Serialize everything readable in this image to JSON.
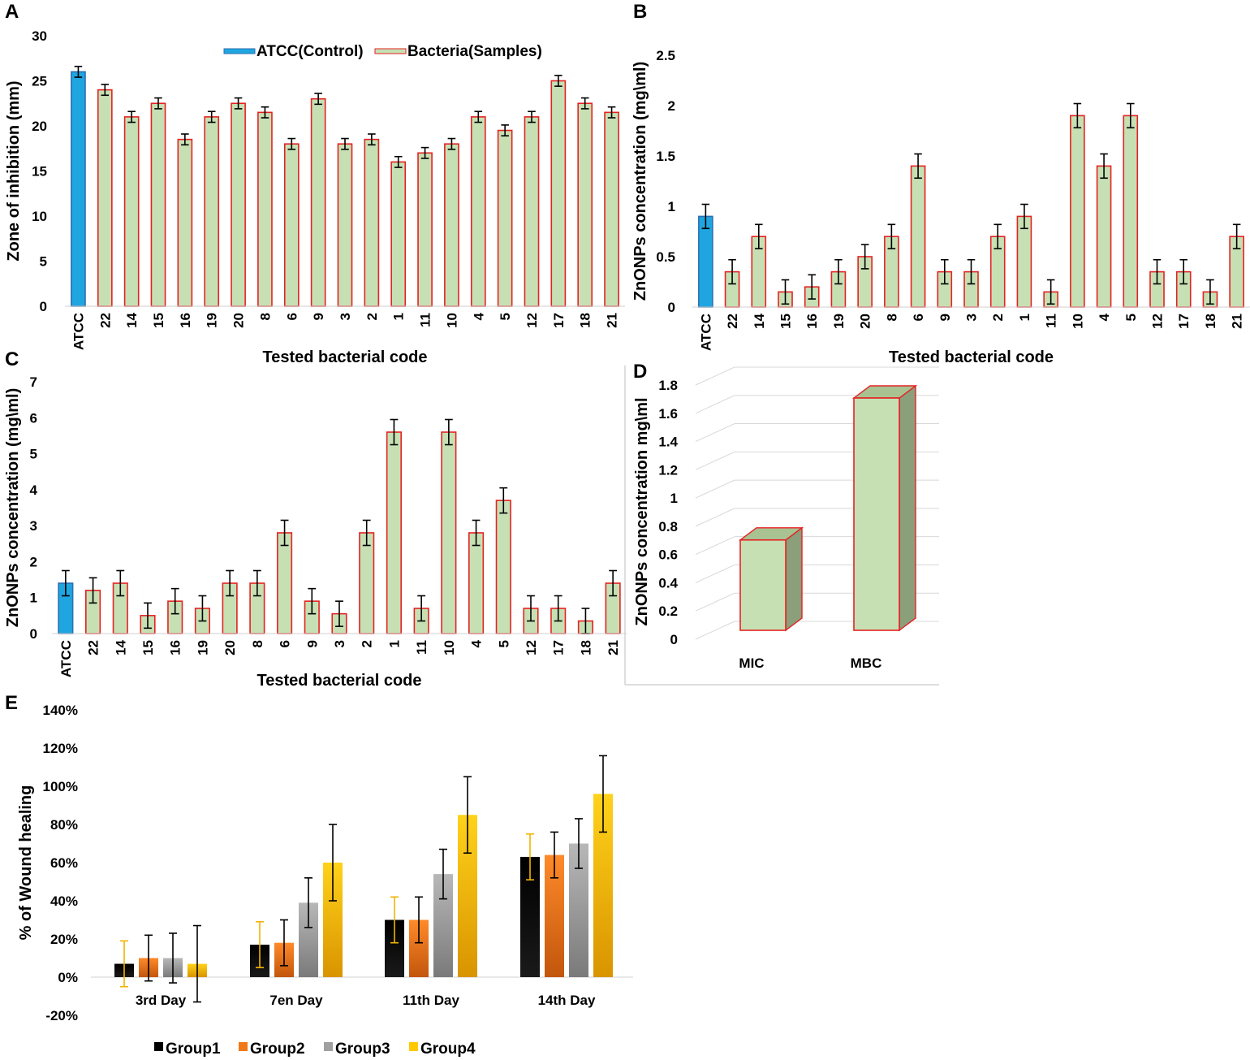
{
  "chart_data": [
    {
      "panel": "A",
      "type": "bar",
      "xlabel": "Tested bacterial code",
      "ylabel": "Zone of inhibition (mm)",
      "ylim": [
        0,
        30
      ],
      "yticks": [
        0,
        5,
        10,
        15,
        20,
        25,
        30
      ],
      "legend": [
        "ATCC(Control)",
        "Bacteria(Samples)"
      ],
      "categories": [
        "ATCC",
        "22",
        "14",
        "15",
        "16",
        "19",
        "20",
        "8",
        "6",
        "9",
        "3",
        "2",
        "1",
        "11",
        "10",
        "4",
        "5",
        "12",
        "17",
        "18",
        "21"
      ],
      "values": [
        26,
        24,
        21,
        22.5,
        18.5,
        21,
        22.5,
        21.5,
        18,
        23,
        18,
        18.5,
        16,
        17,
        18,
        21,
        19.5,
        21,
        25,
        22.5,
        21.5
      ],
      "errors": [
        0.6,
        0.6,
        0.6,
        0.6,
        0.6,
        0.6,
        0.6,
        0.6,
        0.6,
        0.6,
        0.6,
        0.6,
        0.6,
        0.6,
        0.6,
        0.6,
        0.6,
        0.6,
        0.6,
        0.6,
        0.6
      ],
      "colors": {
        "control": "#1fa6e0",
        "sample": "#c6e0b4",
        "outline": "#e52222"
      }
    },
    {
      "panel": "B",
      "type": "bar",
      "xlabel": "Tested bacterial code",
      "ylabel": "ZnONPs concentration (mg\\ml)",
      "ylim": [
        0,
        2.5
      ],
      "yticks": [
        "0",
        "0.5",
        "1",
        "1.5",
        "2",
        "2.5"
      ],
      "categories": [
        "ATCC",
        "22",
        "14",
        "15",
        "16",
        "19",
        "20",
        "8",
        "6",
        "9",
        "3",
        "2",
        "1",
        "11",
        "10",
        "4",
        "5",
        "12",
        "17",
        "18",
        "21"
      ],
      "values": [
        0.9,
        0.35,
        0.7,
        0.15,
        0.2,
        0.35,
        0.5,
        0.7,
        1.4,
        0.35,
        0.35,
        0.7,
        0.9,
        0.15,
        1.9,
        1.4,
        1.9,
        0.35,
        0.35,
        0.15,
        0.7
      ],
      "errors": [
        0.12,
        0.12,
        0.12,
        0.12,
        0.12,
        0.12,
        0.12,
        0.12,
        0.12,
        0.12,
        0.12,
        0.12,
        0.12,
        0.12,
        0.12,
        0.12,
        0.12,
        0.12,
        0.12,
        0.12,
        0.12
      ]
    },
    {
      "panel": "C",
      "type": "bar",
      "xlabel": "Tested bacterial code",
      "ylabel": "ZnONPs concentration (mg\\ml)",
      "ylim": [
        0,
        7
      ],
      "yticks": [
        "0",
        "1",
        "2",
        "3",
        "4",
        "5",
        "6",
        "7"
      ],
      "categories": [
        "ATCC",
        "22",
        "14",
        "15",
        "16",
        "19",
        "20",
        "8",
        "6",
        "9",
        "3",
        "2",
        "1",
        "11",
        "10",
        "4",
        "5",
        "12",
        "17",
        "18",
        "21"
      ],
      "values": [
        1.4,
        1.2,
        1.4,
        0.5,
        0.9,
        0.7,
        1.4,
        1.4,
        2.8,
        0.9,
        0.55,
        2.8,
        5.6,
        0.7,
        5.6,
        2.8,
        3.7,
        0.7,
        0.7,
        0.35,
        1.4
      ],
      "errors": [
        0.35,
        0.35,
        0.35,
        0.35,
        0.35,
        0.35,
        0.35,
        0.35,
        0.35,
        0.35,
        0.35,
        0.35,
        0.35,
        0.35,
        0.35,
        0.35,
        0.35,
        0.35,
        0.35,
        0.35,
        0.35
      ]
    },
    {
      "panel": "D",
      "type": "bar",
      "style": "3d",
      "ylabel": "ZnONPs concentration mg\\ml",
      "ylim": [
        0,
        1.8
      ],
      "yticks": [
        "0",
        "0.2",
        "0.4",
        "0.6",
        "0.8",
        "1",
        "1.2",
        "1.4",
        "1.6",
        "1.8"
      ],
      "categories": [
        "MIC",
        "MBC"
      ],
      "values": [
        0.7,
        1.8
      ],
      "colors": {
        "front": "#c6e0b4",
        "side": "#8a9f7a",
        "top": "#a8c292"
      }
    },
    {
      "panel": "E",
      "type": "bar",
      "ylabel": "% of Wound healing",
      "ylim": [
        -20,
        140
      ],
      "yticks": [
        "-20%",
        "0%",
        "20%",
        "40%",
        "60%",
        "80%",
        "100%",
        "120%",
        "140%"
      ],
      "categories": [
        "3rd Day",
        "7en Day",
        "11th Day",
        "14th Day"
      ],
      "series": [
        {
          "name": "Group1",
          "values": [
            7,
            17,
            30,
            63
          ],
          "errors": [
            12,
            12,
            12,
            12
          ],
          "color": "#000000",
          "errcolor": "#f0b400"
        },
        {
          "name": "Group2",
          "values": [
            10,
            18,
            30,
            64
          ],
          "errors": [
            12,
            12,
            12,
            12
          ],
          "color": "#f07818",
          "errcolor": "#000000"
        },
        {
          "name": "Group3",
          "values": [
            10,
            39,
            54,
            70
          ],
          "errors": [
            13,
            13,
            13,
            13
          ],
          "color": "#a0a0a0",
          "errcolor": "#000000"
        },
        {
          "name": "Group4",
          "values": [
            7,
            60,
            85,
            96
          ],
          "errors": [
            20,
            20,
            20,
            20
          ],
          "color": "#ffc800",
          "errcolor": "#000000"
        }
      ]
    }
  ]
}
